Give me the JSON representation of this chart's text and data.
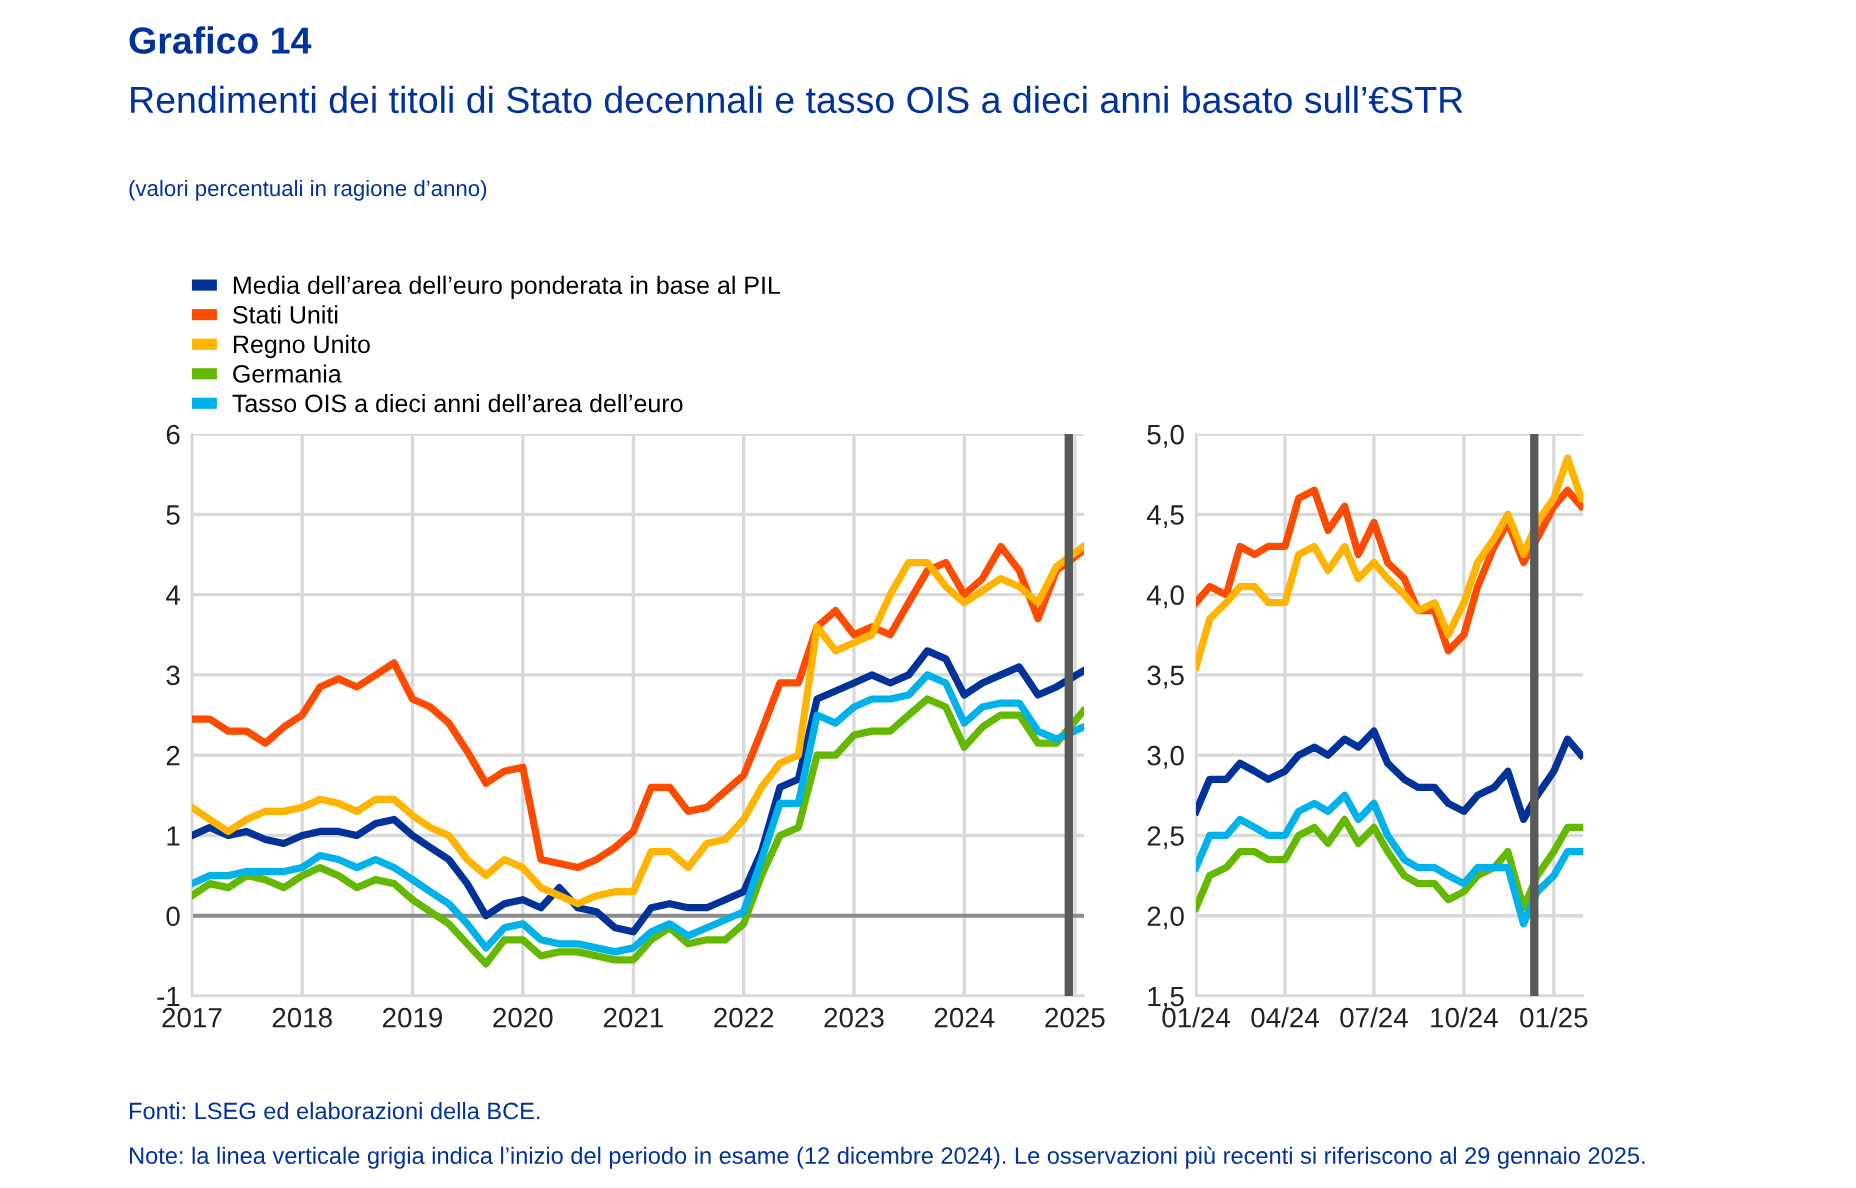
{
  "chart_data": [
    {
      "type": "line",
      "title": "Grafico 14",
      "subtitle": "Rendimenti dei titoli di Stato decennali e tasso OIS a dieci anni basato sull’€STR",
      "annotations": [
        "(valori percentuali in ragione d’anno)",
        "Fonti: LSEG ed elaborazioni della BCE.",
        "Note: la linea verticale grigia indica l’inizio del periodo in esame (12 dicembre 2024). Le osservazioni più recenti si riferiscono al 29 gennaio 2025."
      ],
      "x": [
        "2017-01-01",
        "2017-03-01",
        "2017-05-01",
        "2017-07-01",
        "2017-09-01",
        "2017-11-01",
        "2018-01-01",
        "2018-03-01",
        "2018-05-01",
        "2018-07-01",
        "2018-09-01",
        "2018-11-01",
        "2019-01-01",
        "2019-03-01",
        "2019-05-01",
        "2019-07-01",
        "2019-09-01",
        "2019-11-01",
        "2020-01-01",
        "2020-03-01",
        "2020-05-01",
        "2020-07-01",
        "2020-09-01",
        "2020-11-01",
        "2021-01-01",
        "2021-03-01",
        "2021-05-01",
        "2021-07-01",
        "2021-09-01",
        "2021-11-01",
        "2022-01-01",
        "2022-03-01",
        "2022-05-01",
        "2022-07-01",
        "2022-09-01",
        "2022-11-01",
        "2023-01-01",
        "2023-03-01",
        "2023-05-01",
        "2023-07-01",
        "2023-09-01",
        "2023-11-01",
        "2024-01-01",
        "2024-03-01",
        "2024-05-01",
        "2024-07-01",
        "2024-09-01",
        "2024-11-01",
        "2025-01-29"
      ],
      "series": [
        {
          "name": "Media dell’area dell’euro ponderata in base al PIL",
          "color": "#003299",
          "values": [
            1.0,
            1.1,
            1.0,
            1.05,
            0.95,
            0.9,
            1.0,
            1.05,
            1.05,
            1.0,
            1.15,
            1.2,
            1.0,
            0.85,
            0.7,
            0.4,
            0.0,
            0.15,
            0.2,
            0.1,
            0.35,
            0.1,
            0.05,
            -0.15,
            -0.2,
            0.1,
            0.15,
            0.1,
            0.1,
            0.2,
            0.3,
            0.8,
            1.6,
            1.7,
            2.7,
            2.8,
            2.9,
            3.0,
            2.9,
            3.0,
            3.3,
            3.2,
            2.75,
            2.9,
            3.0,
            3.1,
            2.75,
            2.85,
            3.05
          ]
        },
        {
          "name": "Stati Uniti",
          "color": "#ff4b00",
          "values": [
            2.45,
            2.45,
            2.3,
            2.3,
            2.15,
            2.35,
            2.5,
            2.85,
            2.95,
            2.85,
            3.0,
            3.15,
            2.7,
            2.6,
            2.4,
            2.05,
            1.65,
            1.8,
            1.85,
            0.7,
            0.65,
            0.6,
            0.7,
            0.85,
            1.05,
            1.6,
            1.6,
            1.3,
            1.35,
            1.55,
            1.75,
            2.3,
            2.9,
            2.9,
            3.6,
            3.8,
            3.5,
            3.6,
            3.5,
            3.9,
            4.3,
            4.4,
            4.0,
            4.2,
            4.6,
            4.3,
            3.7,
            4.3,
            4.55
          ]
        },
        {
          "name": "Regno Unito",
          "color": "#ffb400",
          "values": [
            1.35,
            1.2,
            1.05,
            1.2,
            1.3,
            1.3,
            1.35,
            1.45,
            1.4,
            1.3,
            1.45,
            1.45,
            1.25,
            1.1,
            1.0,
            0.7,
            0.5,
            0.7,
            0.6,
            0.35,
            0.25,
            0.15,
            0.25,
            0.3,
            0.3,
            0.8,
            0.8,
            0.6,
            0.9,
            0.95,
            1.2,
            1.6,
            1.9,
            2.0,
            3.6,
            3.3,
            3.4,
            3.5,
            4.0,
            4.4,
            4.4,
            4.1,
            3.9,
            4.05,
            4.2,
            4.1,
            3.9,
            4.35,
            4.6
          ]
        },
        {
          "name": "Germania",
          "color": "#65b800",
          "values": [
            0.25,
            0.4,
            0.35,
            0.5,
            0.45,
            0.35,
            0.5,
            0.6,
            0.5,
            0.35,
            0.45,
            0.4,
            0.2,
            0.05,
            -0.1,
            -0.35,
            -0.6,
            -0.3,
            -0.3,
            -0.5,
            -0.45,
            -0.45,
            -0.5,
            -0.55,
            -0.55,
            -0.3,
            -0.15,
            -0.35,
            -0.3,
            -0.3,
            -0.1,
            0.5,
            1.0,
            1.1,
            2.0,
            2.0,
            2.25,
            2.3,
            2.3,
            2.5,
            2.7,
            2.6,
            2.1,
            2.35,
            2.5,
            2.5,
            2.15,
            2.15,
            2.55
          ]
        },
        {
          "name": "Tasso OIS a dieci anni dell’area dell’euro",
          "color": "#00b1ea",
          "values": [
            0.4,
            0.5,
            0.5,
            0.55,
            0.55,
            0.55,
            0.6,
            0.75,
            0.7,
            0.6,
            0.7,
            0.6,
            0.45,
            0.3,
            0.15,
            -0.1,
            -0.4,
            -0.15,
            -0.1,
            -0.3,
            -0.35,
            -0.35,
            -0.4,
            -0.45,
            -0.4,
            -0.2,
            -0.1,
            -0.25,
            -0.15,
            -0.05,
            0.05,
            0.7,
            1.4,
            1.4,
            2.5,
            2.4,
            2.6,
            2.7,
            2.7,
            2.75,
            3.0,
            2.9,
            2.4,
            2.6,
            2.65,
            2.65,
            2.3,
            2.2,
            2.35
          ]
        }
      ],
      "xlim": [
        "2017-01-01",
        "2025-01-31"
      ],
      "xticks": [
        {
          "value": "2017-01-01",
          "label": "2017"
        },
        {
          "value": "2018-01-01",
          "label": "2018"
        },
        {
          "value": "2019-01-01",
          "label": "2019"
        },
        {
          "value": "2020-01-01",
          "label": "2020"
        },
        {
          "value": "2021-01-01",
          "label": "2021"
        },
        {
          "value": "2022-01-01",
          "label": "2022"
        },
        {
          "value": "2023-01-01",
          "label": "2023"
        },
        {
          "value": "2024-01-01",
          "label": "2024"
        },
        {
          "value": "2025-01-01",
          "label": "2025"
        }
      ],
      "ylim": [
        -1,
        6
      ],
      "yticks": [
        -1,
        0,
        1,
        2,
        3,
        4,
        5,
        6
      ],
      "ref_lines": [
        {
          "axis": "x",
          "value": "2024-12-12",
          "color": "#595959"
        },
        {
          "axis": "y",
          "value": 0,
          "color": "#8c8c8c"
        }
      ],
      "grid": true,
      "legend": "top left"
    },
    {
      "type": "line",
      "x": [
        "2024-01-01",
        "2024-01-15",
        "2024-02-01",
        "2024-02-15",
        "2024-03-01",
        "2024-03-15",
        "2024-04-01",
        "2024-04-15",
        "2024-05-01",
        "2024-05-15",
        "2024-06-01",
        "2024-06-15",
        "2024-07-01",
        "2024-07-15",
        "2024-08-01",
        "2024-08-15",
        "2024-09-01",
        "2024-09-15",
        "2024-10-01",
        "2024-10-15",
        "2024-11-01",
        "2024-11-15",
        "2024-12-01",
        "2024-12-15",
        "2025-01-01",
        "2025-01-15",
        "2025-01-29"
      ],
      "series": [
        {
          "color": "#003299",
          "values": [
            2.65,
            2.85,
            2.85,
            2.95,
            2.9,
            2.85,
            2.9,
            3.0,
            3.05,
            3.0,
            3.1,
            3.05,
            3.15,
            2.95,
            2.85,
            2.8,
            2.8,
            2.7,
            2.65,
            2.75,
            2.8,
            2.9,
            2.6,
            2.75,
            2.9,
            3.1,
            3.0
          ]
        },
        {
          "color": "#ff4b00",
          "values": [
            3.95,
            4.05,
            4.0,
            4.3,
            4.25,
            4.3,
            4.3,
            4.6,
            4.65,
            4.4,
            4.55,
            4.25,
            4.45,
            4.2,
            4.1,
            3.9,
            3.9,
            3.65,
            3.75,
            4.05,
            4.3,
            4.45,
            4.2,
            4.35,
            4.55,
            4.65,
            4.55
          ]
        },
        {
          "color": "#ffb400",
          "values": [
            3.55,
            3.85,
            3.95,
            4.05,
            4.05,
            3.95,
            3.95,
            4.25,
            4.3,
            4.15,
            4.3,
            4.1,
            4.2,
            4.1,
            4.0,
            3.9,
            3.95,
            3.75,
            3.95,
            4.2,
            4.35,
            4.5,
            4.25,
            4.45,
            4.6,
            4.85,
            4.6
          ]
        },
        {
          "color": "#65b800",
          "values": [
            2.05,
            2.25,
            2.3,
            2.4,
            2.4,
            2.35,
            2.35,
            2.5,
            2.55,
            2.45,
            2.6,
            2.45,
            2.55,
            2.4,
            2.25,
            2.2,
            2.2,
            2.1,
            2.15,
            2.25,
            2.3,
            2.4,
            2.05,
            2.25,
            2.4,
            2.55,
            2.55
          ]
        },
        {
          "color": "#00b1ea",
          "values": [
            2.3,
            2.5,
            2.5,
            2.6,
            2.55,
            2.5,
            2.5,
            2.65,
            2.7,
            2.65,
            2.75,
            2.6,
            2.7,
            2.5,
            2.35,
            2.3,
            2.3,
            2.25,
            2.2,
            2.3,
            2.3,
            2.3,
            1.95,
            2.15,
            2.25,
            2.4,
            2.4
          ]
        }
      ],
      "xlim": [
        "2024-01-01",
        "2025-01-31"
      ],
      "xticks": [
        {
          "value": "2024-01-01",
          "label": "01/24"
        },
        {
          "value": "2024-04-01",
          "label": "04/24"
        },
        {
          "value": "2024-07-01",
          "label": "07/24"
        },
        {
          "value": "2024-10-01",
          "label": "10/24"
        },
        {
          "value": "2025-01-01",
          "label": "01/25"
        }
      ],
      "ylim": [
        1.5,
        5.0
      ],
      "yticks": [
        {
          "value": 1.5,
          "label": "1,5"
        },
        {
          "value": 2.0,
          "label": "2,0"
        },
        {
          "value": 2.5,
          "label": "2,5"
        },
        {
          "value": 3.0,
          "label": "3,0"
        },
        {
          "value": 3.5,
          "label": "3,5"
        },
        {
          "value": 4.0,
          "label": "4,0"
        },
        {
          "value": 4.5,
          "label": "4,5"
        },
        {
          "value": 5.0,
          "label": "5,0"
        }
      ],
      "ref_lines": [
        {
          "axis": "x",
          "value": "2024-12-12",
          "color": "#595959"
        }
      ],
      "grid": true
    }
  ]
}
